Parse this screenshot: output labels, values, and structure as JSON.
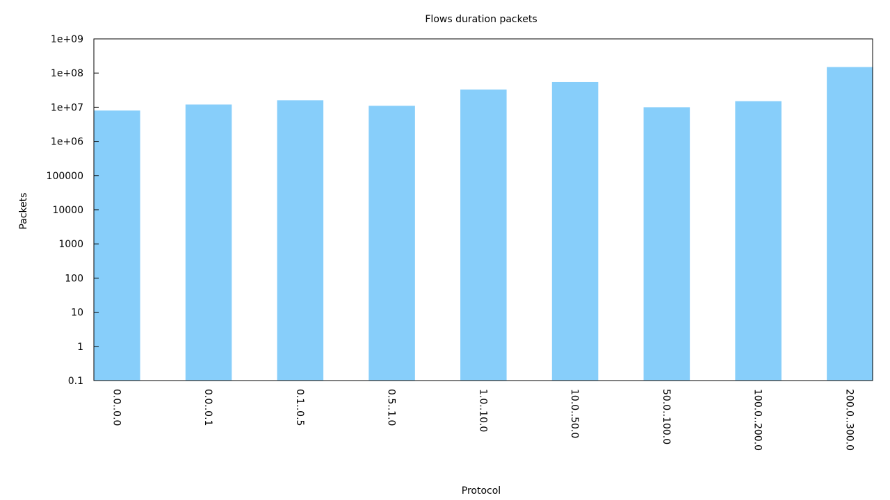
{
  "chart_data": {
    "type": "bar",
    "title": "Flows duration packets",
    "xlabel": "Protocol",
    "ylabel": "Packets",
    "y_scale": "log",
    "ylim": [
      0.1,
      1000000000
    ],
    "y_ticks": [
      {
        "value": 0.1,
        "label": "0.1"
      },
      {
        "value": 1,
        "label": "1"
      },
      {
        "value": 10,
        "label": "10"
      },
      {
        "value": 100,
        "label": "100"
      },
      {
        "value": 1000,
        "label": "1000"
      },
      {
        "value": 10000,
        "label": "10000"
      },
      {
        "value": 100000,
        "label": "100000"
      },
      {
        "value": 1000000,
        "label": "1e+06"
      },
      {
        "value": 10000000,
        "label": "1e+07"
      },
      {
        "value": 100000000,
        "label": "1e+08"
      },
      {
        "value": 1000000000,
        "label": "1e+09"
      }
    ],
    "categories": [
      "0.0..0.0",
      "0.0..0.1",
      "0.1..0.5",
      "0.5..1.0",
      "1.0..10.0",
      "10.0..50.0",
      "50.0..100.0",
      "100.0..200.0",
      "200.0..300.0"
    ],
    "values": [
      8000000,
      12000000,
      16000000,
      11000000,
      33000000,
      55000000,
      10000000,
      15000000,
      150000000
    ],
    "bar_color": "#87cefa",
    "grid": false,
    "legend": "none"
  }
}
